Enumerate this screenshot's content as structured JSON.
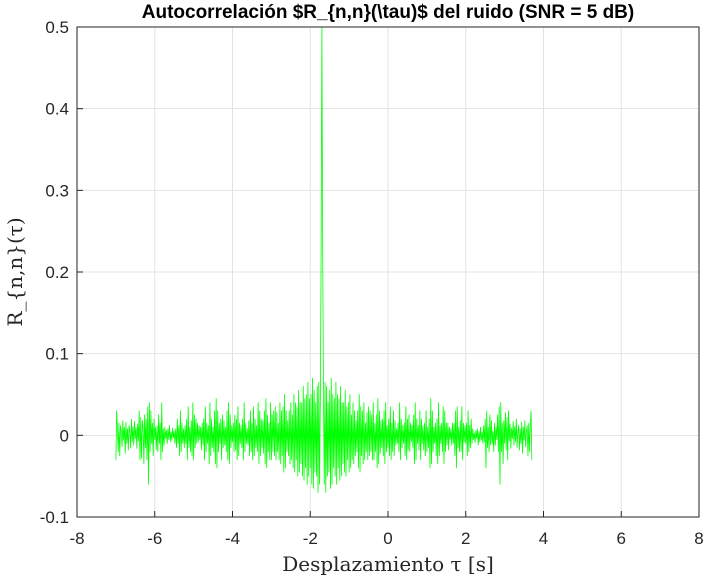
{
  "chart_data": {
    "type": "line",
    "title": "Autocorrelación $R_{n,n}(\\tau)$ del ruido (SNR = 5 dB)",
    "xlabel": "Desplazamiento τ [s]",
    "ylabel": "R_{n,n}(τ)",
    "xlim": [
      -8,
      8
    ],
    "ylim": [
      -0.1,
      0.5
    ],
    "x_ticks": [
      "-8",
      "-6",
      "-4",
      "-2",
      "0",
      "2",
      "4",
      "6",
      "8"
    ],
    "y_ticks": [
      "-0.1",
      "0",
      "0.1",
      "0.2",
      "0.3",
      "0.4",
      "0.5"
    ],
    "grid": true,
    "series": [
      {
        "color": "#00ff00",
        "x_start": -7.0,
        "x_step": 0.02,
        "values": [
          -0.03,
          0.03,
          0.01,
          -0.02,
          0.015,
          -0.025,
          0.012,
          0.005,
          -0.014,
          0.018,
          -0.006,
          0.01,
          -0.022,
          0.016,
          -0.01,
          0.008,
          -0.018,
          0.012,
          0.004,
          -0.015,
          0.02,
          -0.008,
          0.011,
          -0.012,
          0.017,
          -0.004,
          0.009,
          -0.016,
          0.014,
          -0.007,
          0.03,
          -0.03,
          0.022,
          -0.028,
          0.018,
          0.01,
          -0.035,
          0.025,
          -0.015,
          0.02,
          -0.03,
          0.035,
          -0.06,
          0.04,
          -0.02,
          0.03,
          -0.01,
          0.015,
          -0.025,
          0.02,
          -0.005,
          0.01,
          -0.018,
          0.012,
          -0.02,
          0.025,
          -0.01,
          0.015,
          -0.03,
          0.04,
          -0.02,
          0.008,
          -0.012,
          0.01,
          -0.004,
          0.006,
          -0.01,
          0.008,
          -0.005,
          0.012,
          -0.008,
          0.004,
          -0.006,
          0.009,
          -0.003,
          0.005,
          -0.01,
          0.008,
          -0.015,
          0.02,
          -0.01,
          0.012,
          -0.025,
          0.03,
          -0.02,
          0.015,
          -0.01,
          0.008,
          -0.015,
          0.012,
          -0.01,
          0.02,
          -0.03,
          0.035,
          -0.015,
          0.01,
          -0.02,
          0.018,
          -0.025,
          0.04,
          -0.03,
          0.025,
          -0.015,
          0.02,
          -0.01,
          0.015,
          -0.008,
          0.012,
          -0.005,
          0.01,
          -0.018,
          0.015,
          -0.012,
          0.02,
          -0.03,
          0.035,
          -0.02,
          0.015,
          -0.01,
          0.012,
          -0.035,
          0.04,
          -0.025,
          0.02,
          -0.015,
          0.01,
          -0.02,
          0.03,
          -0.035,
          0.045,
          -0.04,
          0.03,
          -0.02,
          0.015,
          -0.01,
          0.02,
          -0.03,
          0.025,
          -0.015,
          0.018,
          -0.012,
          0.01,
          -0.02,
          0.03,
          -0.03,
          0.04,
          -0.035,
          0.025,
          -0.015,
          0.012,
          -0.008,
          0.015,
          -0.02,
          0.025,
          -0.018,
          0.02,
          -0.03,
          0.035,
          -0.025,
          0.015,
          -0.01,
          0.012,
          -0.015,
          0.02,
          -0.03,
          0.04,
          -0.02,
          0.015,
          -0.01,
          0.008,
          -0.012,
          0.018,
          -0.025,
          0.03,
          -0.02,
          0.015,
          -0.03,
          0.035,
          -0.025,
          0.02,
          -0.015,
          0.012,
          -0.02,
          0.04,
          -0.035,
          0.03,
          -0.025,
          0.02,
          -0.015,
          0.018,
          -0.022,
          0.03,
          -0.035,
          0.045,
          -0.04,
          0.025,
          -0.02,
          0.015,
          -0.03,
          0.04,
          -0.03,
          0.025,
          -0.02,
          0.03,
          -0.025,
          0.035,
          -0.03,
          0.028,
          -0.02,
          0.015,
          -0.03,
          0.04,
          -0.035,
          0.03,
          -0.025,
          0.035,
          -0.045,
          0.05,
          -0.04,
          0.03,
          -0.02,
          0.018,
          -0.025,
          0.03,
          -0.035,
          0.04,
          -0.03,
          0.025,
          -0.04,
          0.05,
          -0.045,
          0.04,
          -0.03,
          0.035,
          -0.05,
          0.055,
          -0.045,
          0.04,
          -0.035,
          0.04,
          -0.05,
          0.06,
          -0.055,
          0.045,
          -0.04,
          0.05,
          -0.06,
          0.065,
          -0.05,
          0.045,
          -0.04,
          0.05,
          -0.06,
          0.07,
          -0.065,
          0.055,
          -0.045,
          0.04,
          -0.05,
          0.06,
          -0.07,
          0.065,
          -0.06,
          0.05,
          0.23,
          0.5,
          0.23,
          0.05,
          -0.06,
          0.065,
          -0.07,
          0.06,
          -0.05,
          0.04,
          -0.045,
          0.055,
          -0.065,
          0.07,
          -0.06,
          0.05,
          -0.04,
          0.045,
          -0.05,
          0.065,
          -0.06,
          0.05,
          -0.04,
          0.045,
          -0.055,
          0.06,
          -0.05,
          0.04,
          -0.035,
          0.04,
          -0.045,
          0.055,
          -0.05,
          0.035,
          -0.03,
          0.04,
          -0.045,
          0.05,
          -0.04,
          0.025,
          -0.03,
          0.04,
          -0.035,
          0.03,
          -0.025,
          0.018,
          -0.02,
          0.03,
          -0.04,
          0.05,
          -0.045,
          0.035,
          -0.025,
          0.03,
          -0.035,
          0.04,
          -0.03,
          0.015,
          -0.02,
          0.028,
          -0.03,
          0.035,
          -0.025,
          0.03,
          -0.02,
          0.025,
          -0.03,
          0.04,
          -0.03,
          0.015,
          -0.02,
          0.025,
          -0.04,
          0.045,
          -0.035,
          0.03,
          -0.022,
          0.018,
          -0.015,
          0.02,
          -0.025,
          0.03,
          -0.035,
          0.04,
          -0.02,
          0.012,
          -0.015,
          0.02,
          -0.025,
          0.035,
          -0.03,
          0.015,
          -0.02,
          0.03,
          -0.025,
          0.018,
          -0.012,
          0.008,
          -0.01,
          0.015,
          -0.02,
          0.04,
          -0.03,
          0.02,
          -0.015,
          0.012,
          -0.01,
          0.015,
          -0.025,
          0.035,
          -0.03,
          0.02,
          -0.018,
          0.025,
          -0.02,
          0.015,
          -0.008,
          0.012,
          -0.015,
          0.025,
          -0.035,
          0.04,
          -0.03,
          0.02,
          -0.01,
          0.012,
          -0.018,
          0.03,
          -0.03,
          0.02,
          -0.01,
          0.012,
          -0.018,
          0.015,
          -0.025,
          0.03,
          -0.02,
          0.01,
          -0.015,
          0.02,
          -0.04,
          0.045,
          -0.035,
          0.03,
          -0.02,
          0.01,
          -0.01,
          0.015,
          -0.025,
          0.02,
          -0.035,
          0.04,
          -0.025,
          0.012,
          -0.01,
          0.015,
          -0.02,
          0.035,
          -0.035,
          0.03,
          -0.02,
          0.015,
          -0.012,
          0.015,
          -0.018,
          0.01,
          -0.005,
          0.008,
          -0.012,
          0.015,
          -0.01,
          0.015,
          -0.025,
          0.03,
          -0.04,
          0.035,
          -0.015,
          0.01,
          -0.02,
          0.018,
          -0.02,
          0.035,
          -0.03,
          0.015,
          -0.008,
          0.012,
          -0.01,
          0.015,
          -0.025,
          0.03,
          -0.02,
          0.012,
          -0.015,
          0.02,
          -0.01,
          0.008,
          -0.005,
          0.003,
          -0.009,
          0.006,
          -0.004,
          0.008,
          -0.012,
          0.005,
          -0.008,
          0.01,
          -0.006,
          0.004,
          -0.01,
          0.012,
          -0.008,
          0.02,
          -0.04,
          0.03,
          -0.015,
          0.01,
          -0.02,
          0.025,
          -0.012,
          0.018,
          -0.01,
          0.005,
          -0.02,
          0.015,
          -0.012,
          0.01,
          -0.005,
          0.025,
          -0.02,
          0.035,
          -0.06,
          0.04,
          -0.02,
          0.015,
          -0.035,
          0.018,
          -0.01,
          0.028,
          -0.018,
          0.022,
          -0.03,
          0.03,
          -0.007,
          0.014,
          -0.016,
          0.009,
          -0.004,
          0.017,
          -0.012,
          0.011,
          -0.008,
          0.02,
          -0.015,
          0.004,
          0.012,
          -0.018,
          0.008,
          -0.01,
          0.016,
          -0.022,
          0.01,
          -0.006,
          0.018,
          -0.014,
          0.005,
          0.012,
          -0.025,
          0.015,
          -0.02,
          0.01,
          0.03,
          -0.03
        ]
      }
    ]
  }
}
